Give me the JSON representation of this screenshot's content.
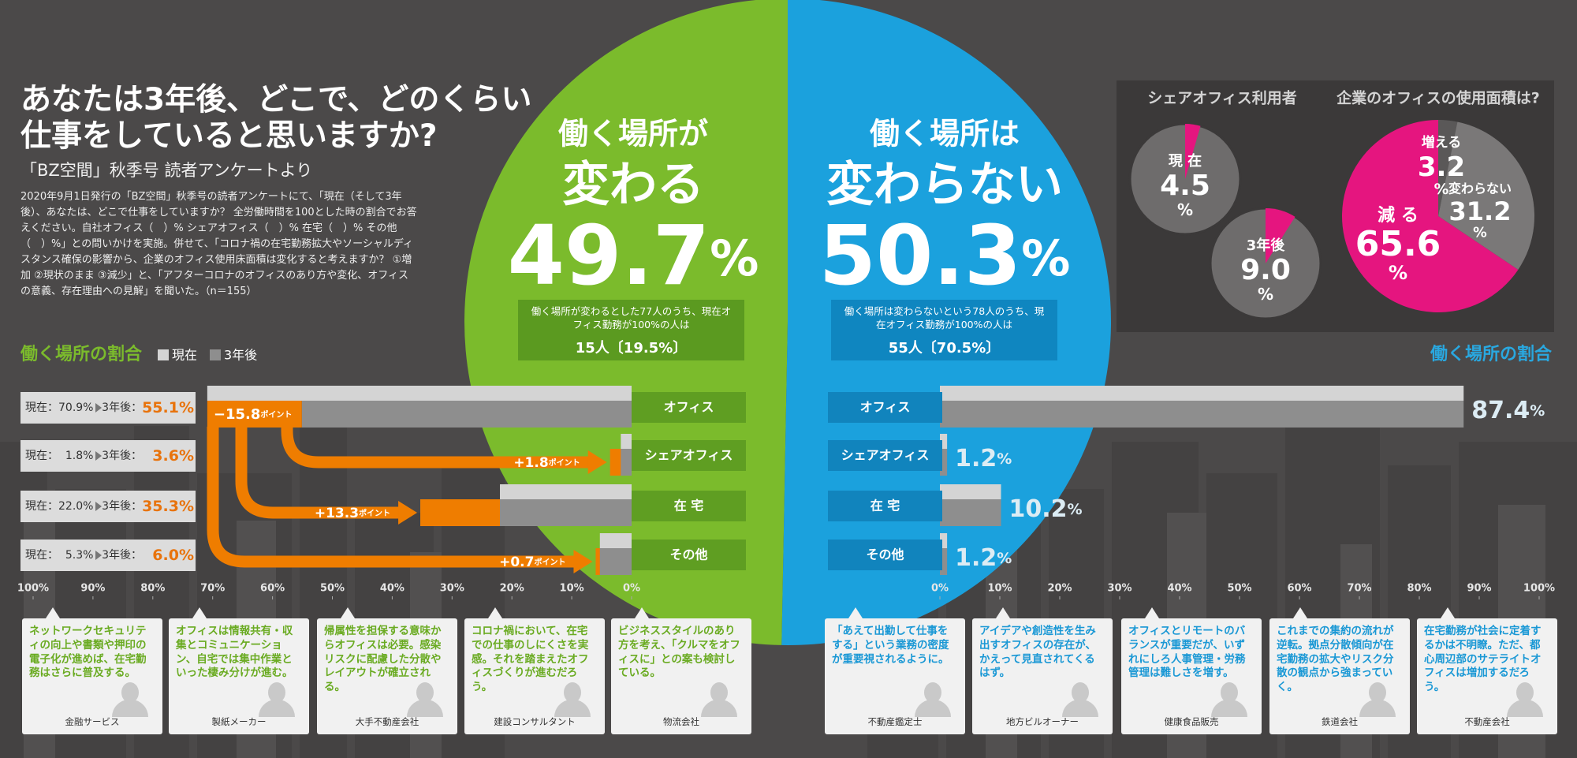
{
  "header": {
    "title": [
      "あなたは3年後、どこで、どのくらい",
      "仕事をしていると思いますか?"
    ],
    "subtitle": "「BZ空間」秋季号 読者アンケートより",
    "body": "2020年9月1日発行の「BZ空間」秋季号の読者アンケートにて、「現在（そして3年後）、あなたは、どこで仕事をしていますか？ 全労働時間を100とした時の割合でお答えください。自社オフィス（　）% シェアオフィス（　）% 在宅（　）% その他（　）%」との問いかけを実施。併せて、「コロナ禍の在宅勤務拡大やソーシャルディスタンス確保の影響から、企業のオフィス使用床面積は変化すると考えますか？ ①増加 ②現状のまま ③減少」と、「アフターコロナのオフィスのあり方や変化、オフィスの意義、存在理由への見解」を聞いた。（n＝155）"
  },
  "chart_data": [
    {
      "type": "pie",
      "labels_top": [
        "働く場所が",
        "働く場所は"
      ],
      "categories": [
        "変わる",
        "変わらない"
      ],
      "values": [
        49.7,
        50.3
      ],
      "value_labels": [
        "49.7%",
        "50.3%"
      ],
      "colors": [
        "#7bbb2c",
        "#1ba1dd"
      ],
      "box_colors": [
        "#5b9a20",
        "#0f86c0"
      ],
      "notes": [
        "働く場所が変わるとした77人のうち、現在オフィス勤務が100%の人は",
        "働く場所は変わらないという78人のうち、現在オフィス勤務が100%の人は"
      ],
      "note_counts": [
        "15人〔19.5%〕",
        "55人〔70.5%〕"
      ]
    },
    {
      "type": "pies",
      "title": "シェアオフィス利用者",
      "categories": [
        "現 在",
        "3年後"
      ],
      "values": [
        4.5,
        9.0
      ],
      "value_labels": [
        "4.5%",
        "9.0%"
      ],
      "color": "#e5157f",
      "rest_color": "#6e6c6c"
    },
    {
      "type": "pie",
      "title": "企業のオフィスの使用面積は?",
      "categories": [
        "増える",
        "変わらない",
        "減 る"
      ],
      "values": [
        3.2,
        31.2,
        65.6
      ],
      "value_labels": [
        "3.2%",
        "31.2%",
        "65.6%"
      ],
      "colors": [
        "#5a5858",
        "#7a7878",
        "#e5157f"
      ]
    },
    {
      "type": "bar",
      "title": "働く場所の割合",
      "title_color": "#7bbb2c",
      "label_box_color": "#5f9e22",
      "categories": [
        "オフィス",
        "シェアオフィス",
        "在 宅",
        "その他"
      ],
      "series": [
        {
          "name": "現在",
          "color": "#d4d4d4",
          "values": [
            70.9,
            1.8,
            22.0,
            5.3
          ],
          "value_labels": [
            "現在：70.9%",
            "現在：  1.8%",
            "現在：22.0%",
            "現在：  5.3%"
          ]
        },
        {
          "name": "3年後",
          "color": "#8e8e8e",
          "values": [
            55.1,
            3.6,
            35.3,
            6.0
          ],
          "value_labels": [
            "3年後：55.1%",
            "3年後：  3.6%",
            "3年後：35.3%",
            "3年後：  6.0%"
          ]
        }
      ],
      "change_labels": [
        "−15.8ポイント",
        "+1.8ポイント",
        "+13.3ポイント",
        "+0.7ポイント"
      ],
      "change_color": "#ef7d00",
      "xlim": [
        100,
        0
      ],
      "xticks": [
        {
          "value": 100,
          "label": "100%"
        },
        {
          "value": 90,
          "label": "90%"
        },
        {
          "value": 80,
          "label": "80%"
        },
        {
          "value": 70,
          "label": "70%"
        },
        {
          "value": 60,
          "label": "60%"
        },
        {
          "value": 50,
          "label": "50%"
        },
        {
          "value": 40,
          "label": "40%"
        },
        {
          "value": 30,
          "label": "30%"
        },
        {
          "value": 20,
          "label": "20%"
        },
        {
          "value": 10,
          "label": "10%"
        },
        {
          "value": 0,
          "label": "0%"
        }
      ]
    },
    {
      "type": "bar",
      "title": "働く場所の割合",
      "title_color": "#29a8e0",
      "label_box_color": "#1184bd",
      "categories": [
        "オフィス",
        "シェアオフィス",
        "在 宅",
        "その他"
      ],
      "values": [
        87.4,
        1.2,
        10.2,
        1.2
      ],
      "value_labels": [
        "87.4%",
        "1.2%",
        "10.2%",
        "1.2%"
      ],
      "colors": [
        "#d4d4d4",
        "#8e8e8e"
      ],
      "xlim": [
        0,
        100
      ],
      "xticks": [
        {
          "value": 0,
          "label": "0%"
        },
        {
          "value": 10,
          "label": "10%"
        },
        {
          "value": 20,
          "label": "20%"
        },
        {
          "value": 30,
          "label": "30%"
        },
        {
          "value": 40,
          "label": "40%"
        },
        {
          "value": 50,
          "label": "50%"
        },
        {
          "value": 60,
          "label": "60%"
        },
        {
          "value": 70,
          "label": "70%"
        },
        {
          "value": 80,
          "label": "80%"
        },
        {
          "value": 90,
          "label": "90%"
        },
        {
          "value": 100,
          "label": "100%"
        }
      ]
    }
  ],
  "comments": [
    {
      "text": "ネットワークセキュリティの向上や書類や押印の電子化が進めば、在宅勤務はさらに普及する。",
      "speaker": "金融サービス"
    },
    {
      "text": "オフィスは情報共有・収集とコミュニケーション、自宅では集中作業といった棲み分けが進む。",
      "speaker": "製紙メーカー"
    },
    {
      "text": "帰属性を担保する意味からオフィスは必要。感染リスクに配慮した分散やレイアウトが確立される。",
      "speaker": "大手不動産会社"
    },
    {
      "text": "コロナ禍において、在宅での仕事のしにくさを実感。それを踏まえたオフィスづくりが進むだろう。",
      "speaker": "建設コンサルタント"
    },
    {
      "text": "ビジネススタイルのあり方を考え、「クルマをオフィスに」との案も検討している。",
      "speaker": "物流会社"
    },
    {
      "text": "「あえて出勤して仕事をする」という業務の密度が重要視されるように。",
      "speaker": "不動産鑑定士"
    },
    {
      "text": "アイデアや創造性を生み出すオフィスの存在が、かえって見直されてくるはず。",
      "speaker": "地方ビルオーナー"
    },
    {
      "text": "オフィスとリモートのバランスが重要だが、いずれにしろ人事管理・労務管理は難しさを増す。",
      "speaker": "健康食品販売"
    },
    {
      "text": "これまでの集約の流れが逆転。拠点分散傾向が在宅勤務の拡大やリスク分散の観点から強まっていく。",
      "speaker": "鉄道会社"
    },
    {
      "text": "在宅勤務が社会に定着するかは不明瞭。ただ、都心周辺部のサテライトオフィスは増加するだろう。",
      "speaker": "不動産会社"
    }
  ]
}
